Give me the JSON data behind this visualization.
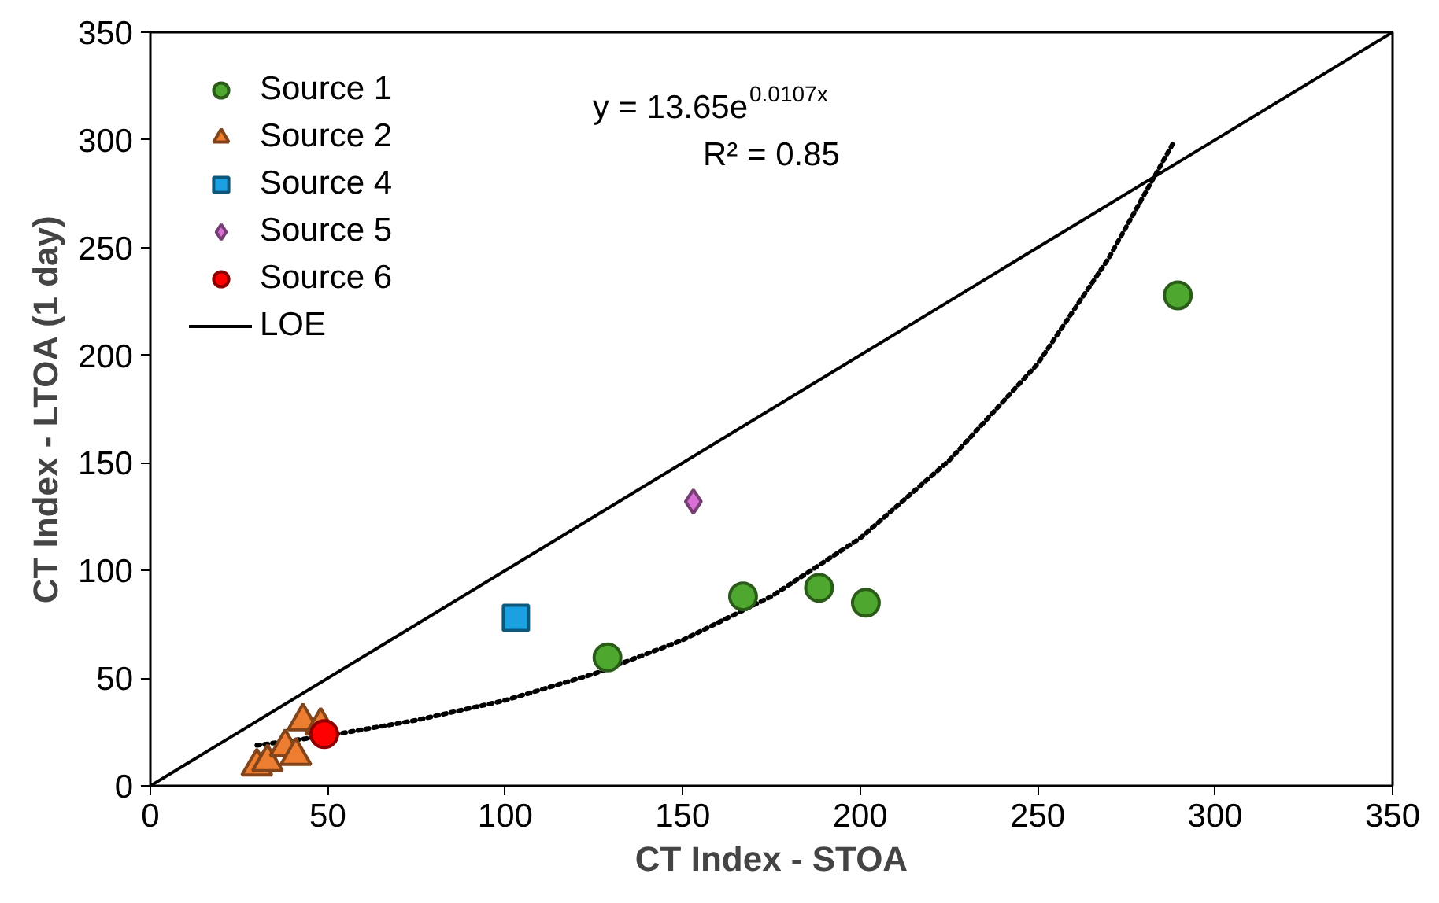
{
  "chart_data": {
    "type": "scatter",
    "xlabel": "CT Index - STOA",
    "ylabel": "CT Index - LTOA (1 day)",
    "xlim": [
      0,
      350
    ],
    "ylim": [
      0,
      350
    ],
    "xticks": [
      0,
      50,
      100,
      150,
      200,
      250,
      300,
      350
    ],
    "yticks": [
      0,
      50,
      100,
      150,
      200,
      250,
      300,
      350
    ],
    "grid": false,
    "legend": "top left",
    "annotations": [
      "y = 13.65e$^{0.0107x}$",
      "R² = 0.85"
    ],
    "series": [
      {
        "name": "Source 1",
        "marker": "circle",
        "color": "#4ea72e",
        "x": [
          128.8,
          167,
          188.4,
          201.6,
          289.5
        ],
        "values": [
          59.6,
          88,
          92,
          85,
          227.8
        ]
      },
      {
        "name": "Source 2",
        "marker": "triangle",
        "color": "#ed7d31",
        "x": [
          30,
          33,
          38,
          41,
          43,
          48
        ],
        "values": [
          9,
          11,
          18,
          14,
          30,
          28
        ]
      },
      {
        "name": "Source 4",
        "marker": "square",
        "color": "#1ba1e2",
        "x": [
          103
        ],
        "values": [
          78
        ]
      },
      {
        "name": "Source 5",
        "marker": "diamond",
        "color": "#da70d6",
        "x": [
          153
        ],
        "values": [
          132
        ]
      },
      {
        "name": "Source 6",
        "marker": "circle",
        "color": "#ff0000",
        "x": [
          49
        ],
        "values": [
          24
        ]
      },
      {
        "name": "LOE",
        "type": "line",
        "line_style": "solid",
        "color": "#000000",
        "x": [
          0,
          350
        ],
        "values": [
          0,
          350
        ]
      },
      {
        "type": "line",
        "line_style": "dotted",
        "color": "#000000",
        "x": [
          30,
          50,
          75,
          100,
          125,
          150,
          175,
          200,
          225,
          250,
          270,
          288
        ],
        "values": [
          18.8,
          23.3,
          30.5,
          39.7,
          52,
          67.7,
          88,
          115,
          151,
          196,
          245,
          298
        ]
      }
    ]
  }
}
